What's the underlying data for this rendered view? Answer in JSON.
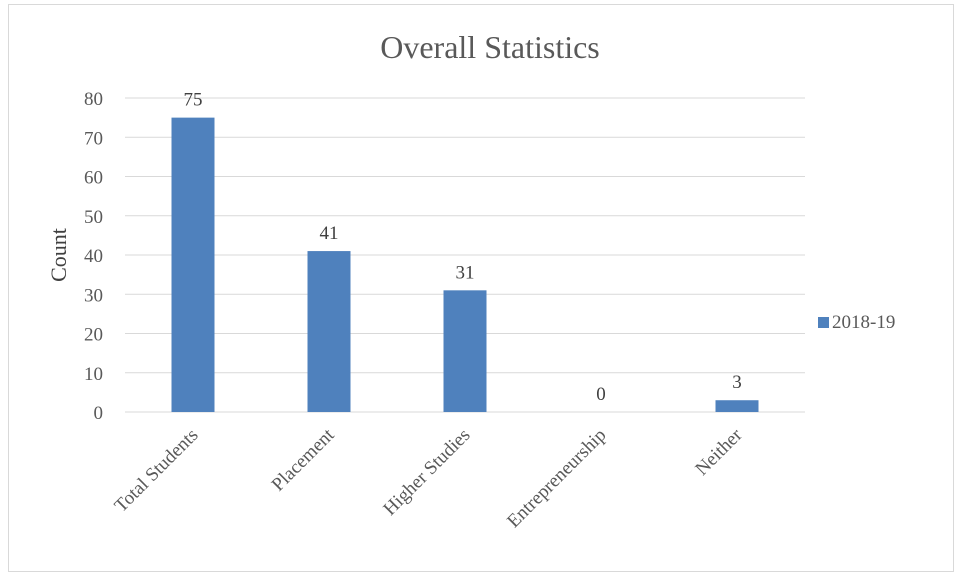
{
  "chart_data": {
    "type": "bar",
    "title": "Overall Statistics",
    "xlabel": "",
    "ylabel": "Count",
    "ylim": [
      0,
      80
    ],
    "yticks": [
      0,
      10,
      20,
      30,
      40,
      50,
      60,
      70,
      80
    ],
    "categories": [
      "Total Students",
      "Placement",
      "Higher Studies",
      "Entrepreneurship",
      "Neither"
    ],
    "series": [
      {
        "name": "2018-19",
        "values": [
          75,
          41,
          31,
          0,
          3
        ],
        "color": "#4f81bd"
      }
    ],
    "data_labels": true,
    "grid": true,
    "legend_position": "right"
  }
}
